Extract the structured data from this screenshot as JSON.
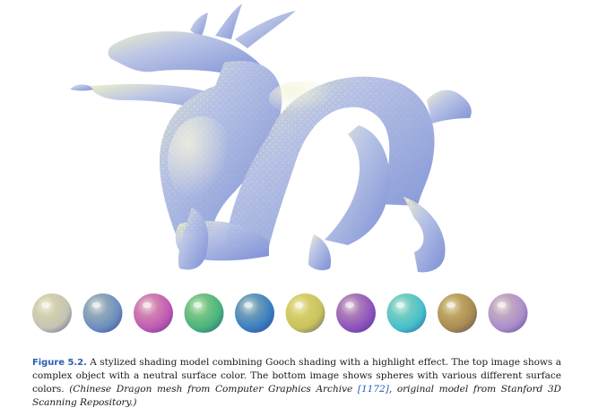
{
  "figure": {
    "label": "Figure 5.2.",
    "caption_main": " A stylized shading model combining Gooch shading with a highlight effect. The top image shows a complex object with a neutral surface color. The bottom image shows spheres with various different surface colors. ",
    "credit_open": "(Chinese Dragon mesh from Computer Graphics Archive ",
    "citation": "[1172]",
    "credit_close": ", original model from Stanford 3D Scanning Repository.)",
    "sphere_colors": [
      "#c4c4b4",
      "#6c8ec0",
      "#c05ab4",
      "#48b47c",
      "#3a7ec0",
      "#c8c25c",
      "#8e52be",
      "#44c0cc",
      "#a88c50",
      "#ab8dcc"
    ]
  }
}
